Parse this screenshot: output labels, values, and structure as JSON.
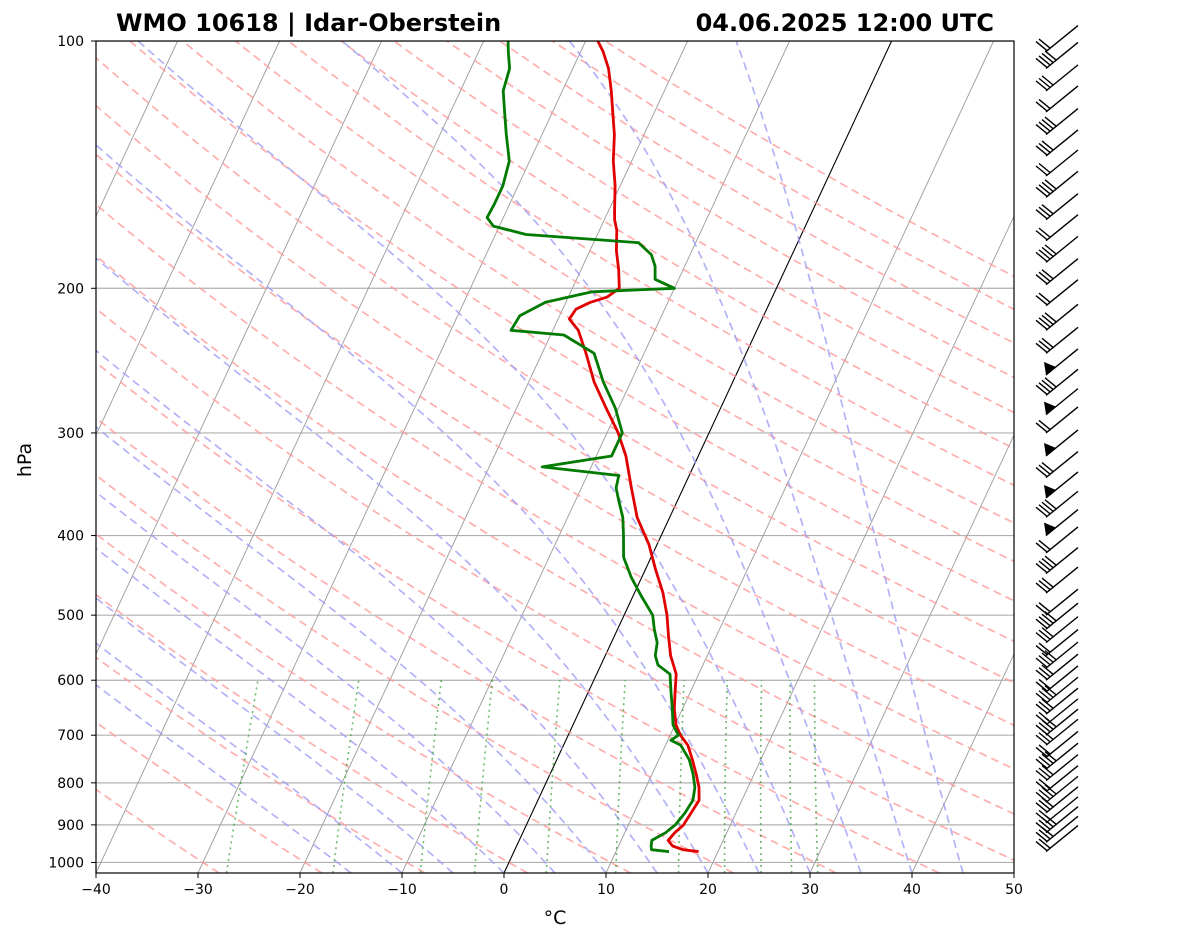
{
  "chart_data": {
    "type": "line",
    "subtype": "skew-t log-p sounding",
    "title_left": "WMO 10618 | Idar-Oberstein",
    "title_right": "04.06.2025 12:00 UTC",
    "xlabel": "°C",
    "ylabel": "hPa",
    "xlim": [
      -40,
      50
    ],
    "ylim": [
      1030,
      100
    ],
    "x_ticks": [
      -40,
      -30,
      -20,
      -10,
      0,
      10,
      20,
      30,
      40,
      50
    ],
    "x_tick_labels": [
      "−40",
      "−30",
      "−20",
      "−10",
      "0",
      "10",
      "20",
      "30",
      "40",
      "50"
    ],
    "y_ticks": [
      100,
      200,
      300,
      400,
      500,
      600,
      700,
      800,
      900,
      1000
    ],
    "y_tick_labels": [
      "100",
      "200",
      "300",
      "400",
      "500",
      "600",
      "700",
      "800",
      "900",
      "1000"
    ],
    "reference_isotherm_c": 0,
    "series": [
      {
        "name": "Temperature",
        "color": "#e00000",
        "points": [
          [
            18.1,
            970
          ],
          [
            16.5,
            965
          ],
          [
            15.3,
            955
          ],
          [
            14.6,
            940
          ],
          [
            14.9,
            920
          ],
          [
            15.4,
            900
          ],
          [
            15.6,
            870
          ],
          [
            15.8,
            840
          ],
          [
            15.2,
            810
          ],
          [
            14.3,
            780
          ],
          [
            13.3,
            750
          ],
          [
            12.2,
            720
          ],
          [
            11.0,
            700
          ],
          [
            10.1,
            680
          ],
          [
            9.2,
            650
          ],
          [
            8.5,
            620
          ],
          [
            7.8,
            590
          ],
          [
            6.4,
            560
          ],
          [
            5.3,
            530
          ],
          [
            4.2,
            500
          ],
          [
            2.8,
            470
          ],
          [
            1.0,
            440
          ],
          [
            -0.8,
            410
          ],
          [
            -3.2,
            380
          ],
          [
            -5.1,
            350
          ],
          [
            -7.1,
            320
          ],
          [
            -8.9,
            300
          ],
          [
            -11.2,
            280
          ],
          [
            -13.6,
            260
          ],
          [
            -15.7,
            240
          ],
          [
            -17.5,
            225
          ],
          [
            -18.9,
            218
          ],
          [
            -18.7,
            212
          ],
          [
            -17.6,
            208
          ],
          [
            -16.2,
            205
          ],
          [
            -15.4,
            200
          ],
          [
            -16.3,
            190
          ],
          [
            -17.4,
            180
          ],
          [
            -18.3,
            170
          ],
          [
            -19.0,
            165
          ],
          [
            -19.5,
            160
          ],
          [
            -20.5,
            150
          ],
          [
            -21.8,
            140
          ],
          [
            -22.9,
            130
          ],
          [
            -24.1,
            122
          ],
          [
            -25.2,
            115
          ],
          [
            -26.5,
            108
          ],
          [
            -27.8,
            103
          ],
          [
            -28.8,
            100
          ]
        ]
      },
      {
        "name": "Dewpoint",
        "color": "#007a00",
        "points": [
          [
            15.2,
            970
          ],
          [
            13.4,
            965
          ],
          [
            13.2,
            955
          ],
          [
            13.0,
            940
          ],
          [
            14.0,
            920
          ],
          [
            14.6,
            900
          ],
          [
            15.0,
            870
          ],
          [
            15.2,
            840
          ],
          [
            14.8,
            810
          ],
          [
            14.0,
            780
          ],
          [
            13.0,
            750
          ],
          [
            11.5,
            720
          ],
          [
            10.3,
            710
          ],
          [
            10.8,
            700
          ],
          [
            9.8,
            680
          ],
          [
            9.0,
            650
          ],
          [
            8.1,
            620
          ],
          [
            7.2,
            590
          ],
          [
            5.6,
            575
          ],
          [
            4.9,
            560
          ],
          [
            4.5,
            540
          ],
          [
            3.6,
            520
          ],
          [
            2.8,
            500
          ],
          [
            0.9,
            475
          ],
          [
            -1.0,
            450
          ],
          [
            -2.7,
            425
          ],
          [
            -3.7,
            400
          ],
          [
            -4.6,
            380
          ],
          [
            -5.8,
            362
          ],
          [
            -6.6,
            350
          ],
          [
            -6.9,
            338
          ],
          [
            -14.8,
            330
          ],
          [
            -8.5,
            320
          ],
          [
            -8.5,
            300
          ],
          [
            -10.3,
            280
          ],
          [
            -12.7,
            260
          ],
          [
            -14.9,
            240
          ],
          [
            -18.7,
            228
          ],
          [
            -24.1,
            225
          ],
          [
            -23.9,
            216
          ],
          [
            -22.0,
            208
          ],
          [
            -17.9,
            202
          ],
          [
            -10.0,
            200
          ],
          [
            -12.3,
            195
          ],
          [
            -12.9,
            188
          ],
          [
            -13.8,
            182
          ],
          [
            -15.6,
            176
          ],
          [
            -27.0,
            172
          ],
          [
            -30.6,
            168
          ],
          [
            -31.6,
            164
          ],
          [
            -31.5,
            158
          ],
          [
            -31.5,
            150
          ],
          [
            -32.0,
            140
          ],
          [
            -33.5,
            130
          ],
          [
            -34.7,
            122
          ],
          [
            -35.8,
            115
          ],
          [
            -36.2,
            108
          ],
          [
            -37.1,
            103
          ],
          [
            -37.6,
            100
          ]
        ]
      }
    ],
    "wind_profile_side": "right",
    "wind_pressure_levels": [
      970,
      945,
      920,
      895,
      870,
      845,
      820,
      795,
      770,
      745,
      720,
      700,
      680,
      660,
      640,
      620,
      600,
      580,
      560,
      540,
      520,
      500,
      470,
      445,
      420,
      400,
      380,
      360,
      340,
      320,
      300,
      285,
      270,
      255,
      240,
      225,
      210,
      198,
      186,
      175,
      165,
      155,
      146,
      138,
      130,
      122,
      115,
      108,
      103
    ]
  }
}
